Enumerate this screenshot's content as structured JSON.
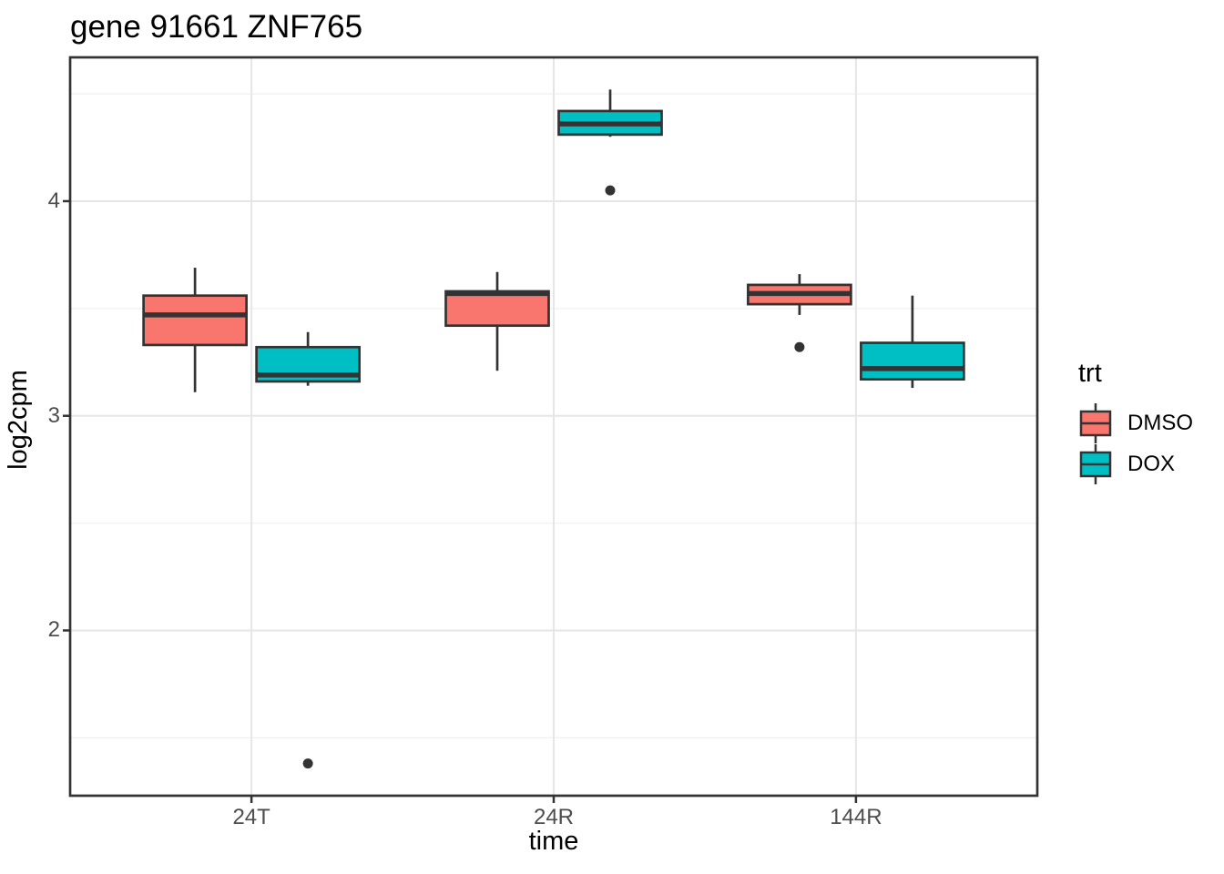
{
  "chart_data": {
    "type": "boxplot",
    "title": "gene 91661 ZNF765",
    "xlabel": "time",
    "ylabel": "log2cpm",
    "categories": [
      "24T",
      "24R",
      "144R"
    ],
    "y_ticks": [
      2,
      3,
      4
    ],
    "y_minor_gridlines": [
      1.5,
      2.5,
      3.5,
      4.5
    ],
    "ylim": [
      1.23,
      4.67
    ],
    "grid": "horizontal major+minor, vertical major at category centers, white panel with dark border",
    "legend": {
      "title": "trt",
      "position": "right",
      "entries": [
        "DMSO",
        "DOX"
      ]
    },
    "series": [
      {
        "name": "DMSO",
        "color": "#F8766D",
        "boxes": [
          {
            "category": "24T",
            "low": 3.11,
            "q1": 3.33,
            "median": 3.47,
            "q3": 3.56,
            "high": 3.69,
            "outliers": []
          },
          {
            "category": "24R",
            "low": 3.21,
            "q1": 3.42,
            "median": 3.57,
            "q3": 3.58,
            "high": 3.67,
            "outliers": []
          },
          {
            "category": "144R",
            "low": 3.47,
            "q1": 3.52,
            "median": 3.57,
            "q3": 3.61,
            "high": 3.66,
            "outliers": [
              3.32
            ]
          }
        ]
      },
      {
        "name": "DOX",
        "color": "#00BFC4",
        "boxes": [
          {
            "category": "24T",
            "low": 3.14,
            "q1": 3.16,
            "median": 3.19,
            "q3": 3.32,
            "high": 3.39,
            "outliers": [
              1.38
            ]
          },
          {
            "category": "24R",
            "low": 4.3,
            "q1": 4.31,
            "median": 4.36,
            "q3": 4.42,
            "high": 4.52,
            "outliers": [
              4.05
            ]
          },
          {
            "category": "144R",
            "low": 3.13,
            "q1": 3.17,
            "median": 3.22,
            "q3": 3.34,
            "high": 3.56,
            "outliers": []
          }
        ]
      }
    ],
    "colors": {
      "box_outline": "#333333",
      "median_line": "#333333",
      "whisker": "#333333",
      "outlier_point": "#333333",
      "panel_border": "#333333",
      "grid_major": "#e6e6e6",
      "grid_minor": "#f2f2f2",
      "tick_label": "#4d4d4d",
      "tick_mark": "#333333"
    }
  }
}
